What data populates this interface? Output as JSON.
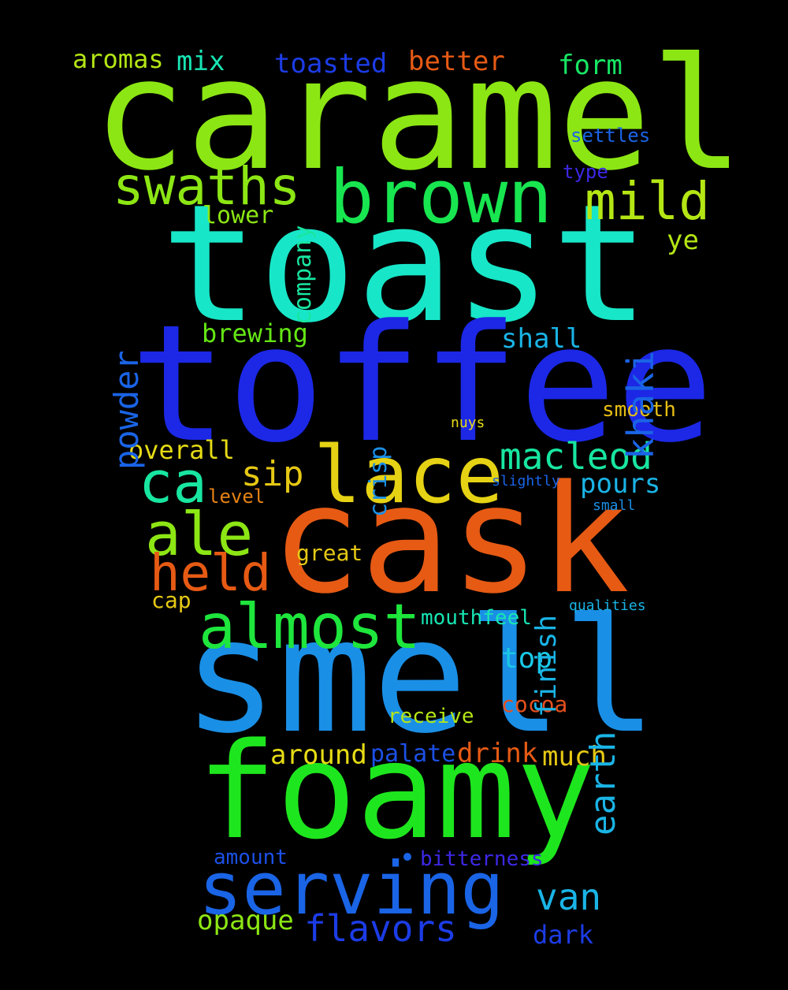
{
  "words": [
    {
      "text": "caramel",
      "color": "#8ce614"
    },
    {
      "text": "toast",
      "color": "#18e6c8"
    },
    {
      "text": "toffee",
      "color": "#1c28e6"
    },
    {
      "text": "cask",
      "color": "#e65a14"
    },
    {
      "text": "smell",
      "color": "#1a8fe6"
    },
    {
      "text": "foamy",
      "color": "#1ee61e"
    },
    {
      "text": "lace",
      "color": "#e6d214"
    },
    {
      "text": "brown",
      "color": "#18e650"
    },
    {
      "text": "serving",
      "color": "#1a64e6"
    },
    {
      "text": "swaths",
      "color": "#8ce614"
    },
    {
      "text": "almost",
      "color": "#1ee63c"
    },
    {
      "text": "mild",
      "color": "#b4e614"
    },
    {
      "text": "ca",
      "color": "#18e6a0"
    },
    {
      "text": "ale",
      "color": "#8ce614"
    },
    {
      "text": "held",
      "color": "#e65a14"
    },
    {
      "text": "macleod",
      "color": "#18e6a0"
    },
    {
      "text": "khaki",
      "color": "#1a64e6"
    },
    {
      "text": "earth",
      "color": "#1ab4e6"
    },
    {
      "text": "van",
      "color": "#1ab4e6"
    },
    {
      "text": "flavors",
      "color": "#1c3ce6"
    },
    {
      "text": "powder",
      "color": "#1a64e6"
    },
    {
      "text": "sip",
      "color": "#e6c814"
    },
    {
      "text": "finish",
      "color": "#1ab4e6"
    },
    {
      "text": "toasted",
      "color": "#1c3ce6"
    },
    {
      "text": "better",
      "color": "#e65a14"
    },
    {
      "text": "form",
      "color": "#18e664"
    },
    {
      "text": "mix",
      "color": "#18e6b4"
    },
    {
      "text": "aromas",
      "color": "#b4e614"
    },
    {
      "text": "pours",
      "color": "#1ab4e6"
    },
    {
      "text": "top",
      "color": "#1ac8e6"
    },
    {
      "text": "opaque",
      "color": "#8ce614"
    },
    {
      "text": "much",
      "color": "#e6c814"
    },
    {
      "text": "around",
      "color": "#e6dc14"
    },
    {
      "text": "palate",
      "color": "#1c50e6"
    },
    {
      "text": "drink",
      "color": "#e65a14"
    },
    {
      "text": "overall",
      "color": "#e6dc14"
    },
    {
      "text": "brewing",
      "color": "#64e614"
    },
    {
      "text": "shall",
      "color": "#1ab4e6"
    },
    {
      "text": "company",
      "color": "#18e6a0"
    },
    {
      "text": "crisp",
      "color": "#1a8fe6"
    },
    {
      "text": "great",
      "color": "#e6c814"
    },
    {
      "text": "smooth",
      "color": "#e6be14"
    },
    {
      "text": "lower",
      "color": "#8ce614"
    },
    {
      "text": "ye",
      "color": "#b4e614"
    },
    {
      "text": "mouthfeel",
      "color": "#18e6b4"
    },
    {
      "text": "receive",
      "color": "#b4e614"
    },
    {
      "text": "cocoa",
      "color": "#e6501e"
    },
    {
      "text": "dark",
      "color": "#1c3ce6"
    },
    {
      "text": "amount",
      "color": "#1c50e6"
    },
    {
      "text": "bitterness",
      "color": "#3c28e6"
    },
    {
      "text": "cap",
      "color": "#e6c814"
    },
    {
      "text": "level",
      "color": "#e68214"
    },
    {
      "text": "settles",
      "color": "#1a64e6"
    },
    {
      "text": "type",
      "color": "#3c28e6"
    },
    {
      "text": "nuys",
      "color": "#e6dc14"
    },
    {
      "text": "slightly",
      "color": "#1a64e6"
    },
    {
      "text": "small",
      "color": "#1a8fe6"
    },
    {
      "text": "qualities",
      "color": "#1ab4e6"
    }
  ],
  "dot": {
    "color": "#1a64e6"
  }
}
